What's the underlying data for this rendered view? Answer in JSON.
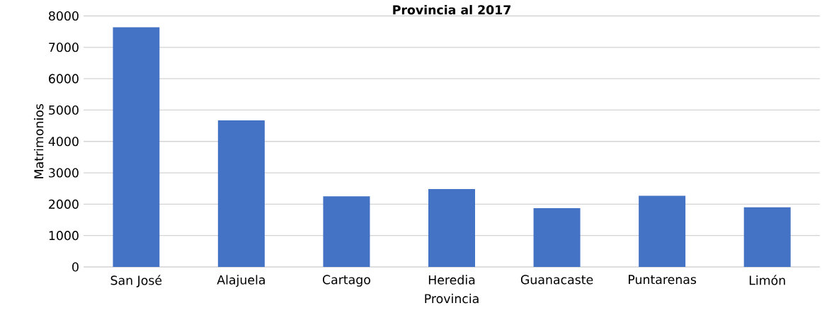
{
  "chart_data": {
    "type": "bar",
    "title": "Provincia al 2017",
    "xlabel": "Provincia",
    "ylabel": "Matrimonios",
    "categories": [
      "San José",
      "Alajuela",
      "Cartago",
      "Heredia",
      "Guanacaste",
      "Puntarenas",
      "Limón"
    ],
    "values": [
      7640,
      4670,
      2250,
      2480,
      1870,
      2270,
      1900
    ],
    "color": "#4472c4",
    "ylim": [
      0,
      8000
    ],
    "yticks": [
      0,
      1000,
      2000,
      3000,
      4000,
      5000,
      6000,
      7000,
      8000
    ],
    "grid": "y"
  }
}
